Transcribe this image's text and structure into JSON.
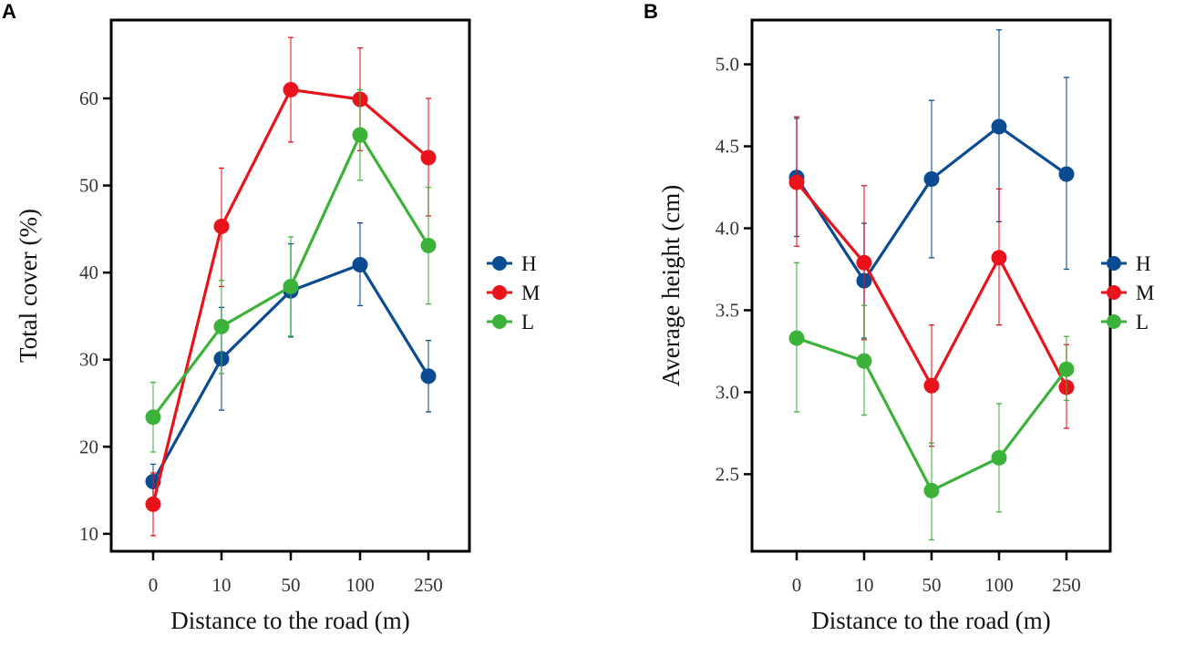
{
  "chart_data": [
    {
      "type": "line",
      "panel_label": "A",
      "title": "",
      "xlabel": "Distance to the road (m)",
      "ylabel": "Total cover (%)",
      "categories": [
        "0",
        "10",
        "50",
        "100",
        "250"
      ],
      "ylim": [
        8,
        69
      ],
      "yticks": [
        10,
        20,
        30,
        40,
        50,
        60
      ],
      "grid": false,
      "legend": "right",
      "series": [
        {
          "name": "H",
          "color": "#0a4b91",
          "values": [
            16.0,
            30.1,
            37.9,
            40.9,
            28.1
          ],
          "err_low": [
            14.0,
            24.2,
            32.6,
            36.2,
            24.0
          ],
          "err_high": [
            18.0,
            36.0,
            43.3,
            45.7,
            32.2
          ]
        },
        {
          "name": "M",
          "color": "#e8131b",
          "values": [
            13.4,
            45.3,
            61.0,
            59.9,
            53.2
          ],
          "err_low": [
            9.8,
            38.4,
            55.0,
            54.0,
            46.5
          ],
          "err_high": [
            17.0,
            52.0,
            67.0,
            65.8,
            60.0
          ]
        },
        {
          "name": "L",
          "color": "#3db23a",
          "values": [
            23.4,
            33.8,
            38.4,
            55.8,
            43.1
          ],
          "err_low": [
            19.4,
            28.4,
            32.7,
            50.6,
            36.4
          ],
          "err_high": [
            27.4,
            39.1,
            44.1,
            61.0,
            49.8
          ]
        }
      ]
    },
    {
      "type": "line",
      "panel_label": "B",
      "title": "",
      "xlabel": "Distance to the road (m)",
      "ylabel": "Average height (cm)",
      "categories": [
        "0",
        "10",
        "50",
        "100",
        "250"
      ],
      "ylim": [
        2.03,
        5.27
      ],
      "yticks": [
        "2.5",
        "3.0",
        "3.5",
        "4.0",
        "4.5",
        "5.0"
      ],
      "grid": false,
      "legend": "right",
      "series": [
        {
          "name": "H",
          "color": "#0a4b91",
          "values": [
            4.31,
            3.68,
            4.3,
            4.62,
            4.33
          ],
          "err_low": [
            3.95,
            3.33,
            3.82,
            4.04,
            3.75
          ],
          "err_high": [
            4.67,
            4.03,
            4.78,
            5.21,
            4.92
          ]
        },
        {
          "name": "M",
          "color": "#e8131b",
          "values": [
            4.28,
            3.79,
            3.04,
            3.82,
            3.03
          ],
          "err_low": [
            3.89,
            3.32,
            2.67,
            3.41,
            2.78
          ],
          "err_high": [
            4.68,
            4.26,
            3.41,
            4.24,
            3.29
          ]
        },
        {
          "name": "L",
          "color": "#3db23a",
          "values": [
            3.33,
            3.19,
            2.4,
            2.6,
            3.14
          ],
          "err_low": [
            2.88,
            2.86,
            2.1,
            2.27,
            2.95
          ],
          "err_high": [
            3.79,
            3.53,
            2.69,
            2.93,
            3.34
          ]
        }
      ]
    }
  ]
}
